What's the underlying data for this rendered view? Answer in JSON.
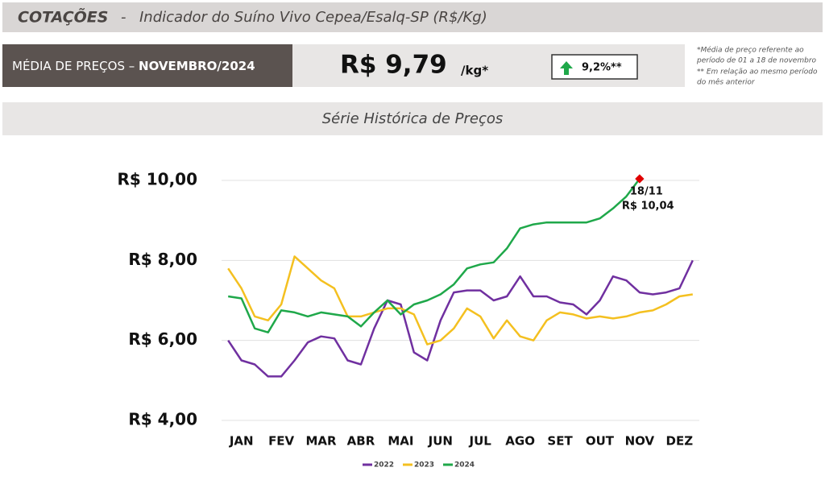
{
  "header": {
    "title": "COTAÇÕES",
    "separator": "-",
    "subtitle": "Indicador do Suíno Vivo Cepea/Esalq-SP (R$/Kg)"
  },
  "price": {
    "label": "MÉDIA DE PREÇOS –",
    "period": "NOVEMBRO/2024",
    "value": "R$ 9,79",
    "unit": "/kg*",
    "change": "9,2%**",
    "notes": [
      "*Média de preço referente ao",
      "período de 01 a 18 de novembro",
      "** Em relação ao mesmo período",
      "do mês anterior"
    ]
  },
  "section_title": "Série Histórica de Preços",
  "chart_data": {
    "type": "line",
    "categories": [
      null,
      "JAN",
      null,
      null,
      "FEV",
      null,
      null,
      "MAR",
      null,
      null,
      "ABR",
      null,
      null,
      "MAI",
      null,
      null,
      "JUN",
      null,
      null,
      "JUL",
      null,
      null,
      "AGO",
      null,
      null,
      "SET",
      null,
      null,
      "OUT",
      null,
      null,
      "NOV",
      null,
      null,
      "DEZ",
      null
    ],
    "ylim": [
      4,
      10.2
    ],
    "yticks": [
      {
        "value": 4,
        "label": "R$ 4,00"
      },
      {
        "value": 6,
        "label": "R$ 6,00"
      },
      {
        "value": 8,
        "label": "R$ 8,00"
      },
      {
        "value": 10,
        "label": "R$ 10,00"
      }
    ],
    "grid": true,
    "legend": "bottom",
    "series": [
      {
        "name": "2022",
        "color": "#7030a0",
        "values": [
          6.0,
          5.5,
          5.4,
          5.1,
          5.1,
          5.5,
          5.95,
          6.1,
          6.05,
          5.5,
          5.4,
          6.3,
          7.0,
          6.9,
          5.7,
          5.5,
          6.5,
          7.2,
          7.25,
          7.25,
          7.0,
          7.1,
          7.6,
          7.1,
          7.1,
          6.95,
          6.9,
          6.65,
          7.0,
          7.6,
          7.5,
          7.2,
          7.15,
          7.2,
          7.3,
          8.0
        ]
      },
      {
        "name": "2023",
        "color": "#f4c020",
        "values": [
          7.8,
          7.3,
          6.6,
          6.5,
          6.9,
          8.1,
          7.8,
          7.5,
          7.3,
          6.6,
          6.6,
          6.7,
          6.8,
          6.8,
          6.65,
          5.9,
          6.0,
          6.3,
          6.8,
          6.6,
          6.05,
          6.5,
          6.1,
          6.0,
          6.5,
          6.7,
          6.65,
          6.55,
          6.6,
          6.55,
          6.6,
          6.7,
          6.75,
          6.9,
          7.1,
          7.15
        ]
      },
      {
        "name": "2024",
        "color": "#1fa84a",
        "values": [
          7.1,
          7.05,
          6.3,
          6.2,
          6.75,
          6.7,
          6.6,
          6.7,
          6.65,
          6.6,
          6.35,
          6.7,
          7.0,
          6.65,
          6.9,
          7.0,
          7.15,
          7.4,
          7.8,
          7.9,
          7.95,
          8.3,
          8.8,
          8.9,
          8.95,
          8.95,
          8.95,
          8.95,
          9.05,
          9.3,
          9.6,
          10.04,
          null,
          null,
          null,
          null
        ]
      }
    ],
    "annotation": {
      "date": "18/11",
      "label": "R$ 10,04",
      "color": "#e00000"
    }
  }
}
